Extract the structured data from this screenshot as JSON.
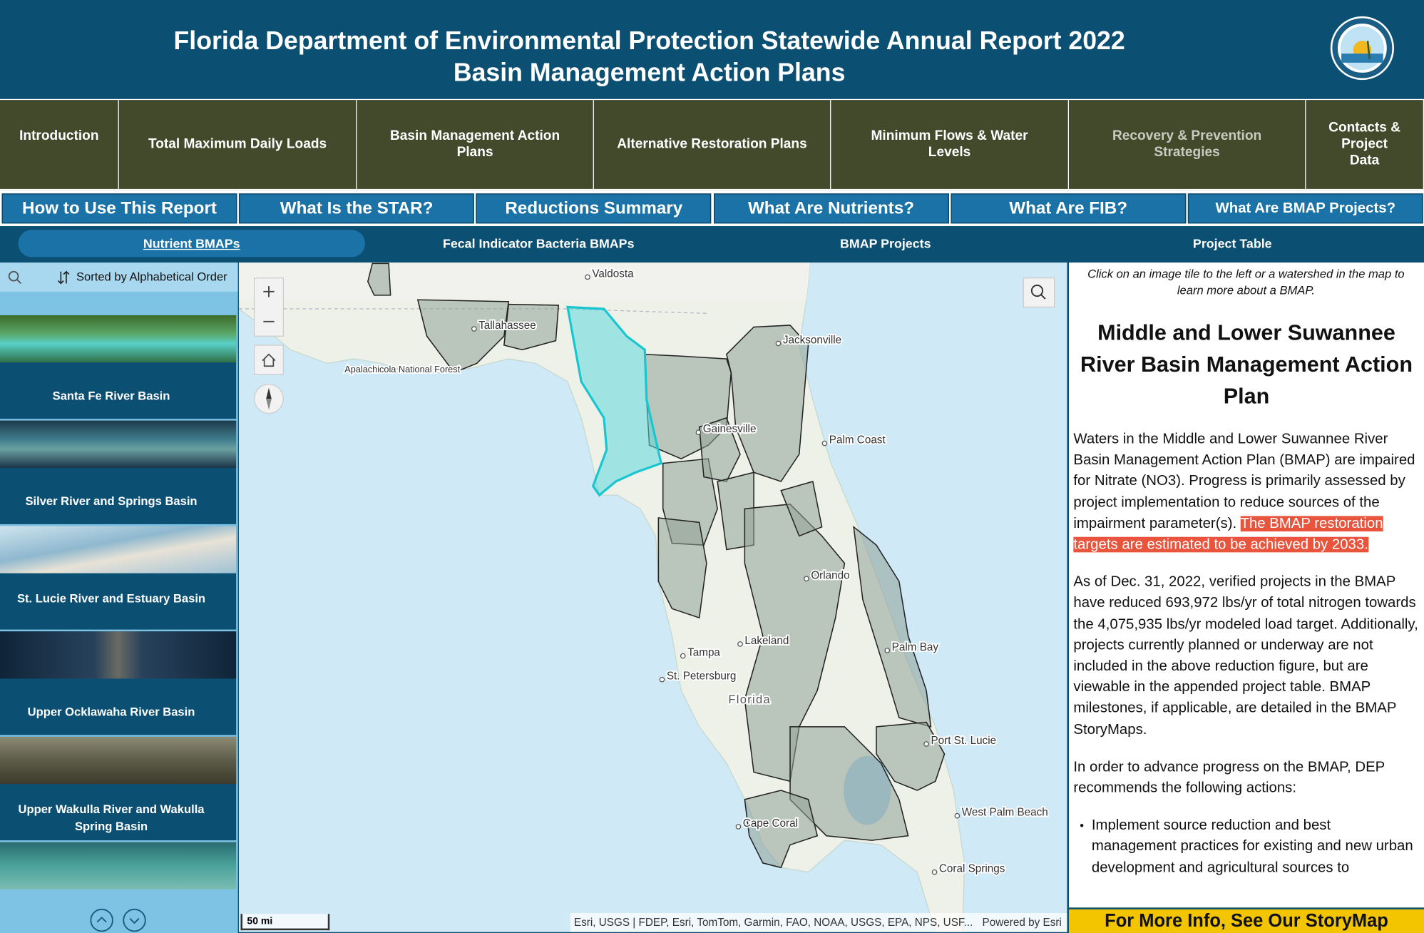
{
  "header": {
    "title": "Florida Department of Environmental Protection Statewide Annual Report 2022",
    "subtitle": "Basin Management Action Plans"
  },
  "nav": [
    "Introduction",
    "Total Maximum Daily Loads",
    "Basin Management Action Plans",
    "Alternative Restoration Plans",
    "Minimum Flows & Water Levels",
    "Recovery & Prevention Strategies",
    "Contacts & Project Data"
  ],
  "buttons": [
    "How to Use This Report",
    "What Is the STAR?",
    "Reductions Summary",
    "What Are Nutrients?",
    "What Are FIB?",
    "What Are BMAP Projects?"
  ],
  "views": [
    "Nutrient BMAPs",
    "Fecal Indicator Bacteria BMAPs",
    "BMAP Projects",
    "Project Table"
  ],
  "sidebar": {
    "sort": "Sorted by Alphabetical Order",
    "items": [
      "Santa Fe River Basin",
      "Silver River and Springs Basin",
      "St. Lucie River and Estuary Basin",
      "Upper Ocklawaha River Basin",
      "Upper Wakulla River and Wakulla Spring Basin"
    ]
  },
  "map": {
    "places": [
      "Valdosta",
      "Tallahassee",
      "Apalachicola National Forest",
      "Jacksonville",
      "Gainesville",
      "Palm Coast",
      "Orlando",
      "Tampa",
      "Lakeland",
      "St. Petersburg",
      "Florida",
      "Palm Bay",
      "Port St. Lucie",
      "West Palm Beach",
      "Cape Coral",
      "Coral Springs"
    ],
    "scale": "50 mi",
    "attribution": "Esri, USGS | FDEP, Esri, TomTom, Garmin, FAO, NOAA, USGS, EPA, NPS, USF...",
    "powered": "Powered by Esri"
  },
  "panel": {
    "instruction": "Click on an image tile to the left or a watershed in the map to learn more about a BMAP.",
    "title": "Middle and Lower Suwannee River Basin Management Action Plan",
    "p1": "Waters in the Middle and Lower Suwannee River Basin Management Action Plan (BMAP) are impaired for Nitrate (NO3). Progress is primarily assessed by project implementation to reduce sources of the impairment parameter(s).",
    "p1_highlight": "The BMAP restoration targets are estimated to be achieved by 2033.",
    "p2": "As of Dec. 31, 2022, verified projects in the BMAP have reduced 693,972 lbs/yr of total nitrogen towards the 4,075,935 lbs/yr modeled load target. Additionally, projects currently planned or underway are not included in the above reduction figure, but are viewable in the appended project table. BMAP milestones, if applicable, are detailed in the BMAP StoryMaps.",
    "p3": "In order to advance progress on the BMAP, DEP recommends the following actions:",
    "bullets": [
      "Implement source reduction and best management practices for existing and new urban development and agricultural sources to"
    ],
    "cta": "For More Info, See Our StoryMap"
  }
}
